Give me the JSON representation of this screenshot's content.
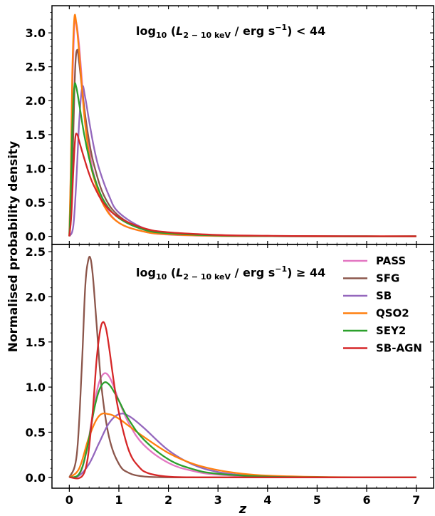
{
  "chart_data": [
    {
      "type": "line",
      "panel": "top",
      "annotation": {
        "text": "log",
        "sub": "10",
        "mid": " (",
        "L": "L",
        "Lsub": "2 − 10 keV",
        "rest": " / erg s",
        "sup": "−1",
        "tail": ") < 44"
      },
      "xlim": [
        -0.35,
        7.35
      ],
      "ylim": [
        -0.12,
        3.4
      ],
      "yticks": [
        0.0,
        0.5,
        1.0,
        1.5,
        2.0,
        2.5,
        3.0
      ],
      "ytick_labels": [
        "0.0",
        "0.5",
        "1.0",
        "1.5",
        "2.0",
        "2.5",
        "3.0"
      ],
      "series": [
        {
          "name": "PASS",
          "color": "#e377c2",
          "x": [
            0,
            0.03,
            0.06,
            0.1,
            0.14,
            0.2,
            0.3,
            0.4,
            0.5,
            0.7,
            1.0,
            1.5,
            2.0,
            3.0,
            4.0,
            5.0,
            6.0,
            7.0
          ],
          "values": [
            0,
            0.9,
            2.1,
            3.05,
            3.15,
            2.8,
            1.9,
            1.3,
            0.9,
            0.48,
            0.2,
            0.07,
            0.025,
            0.005,
            0.001,
            0,
            0,
            0
          ]
        },
        {
          "name": "SFG",
          "color": "#8c564b",
          "x": [
            0,
            0.04,
            0.08,
            0.12,
            0.16,
            0.2,
            0.3,
            0.4,
            0.5,
            0.7,
            1.0,
            1.5,
            2.0,
            3.0,
            4.0,
            5.0,
            6.0,
            7.0
          ],
          "values": [
            0,
            0.4,
            1.5,
            2.5,
            2.75,
            2.55,
            1.9,
            1.4,
            1.05,
            0.6,
            0.3,
            0.1,
            0.04,
            0.01,
            0.003,
            0.001,
            0,
            0
          ]
        },
        {
          "name": "SB",
          "color": "#9467bd",
          "x": [
            0,
            0.08,
            0.14,
            0.2,
            0.26,
            0.32,
            0.4,
            0.5,
            0.6,
            0.8,
            1.0,
            1.5,
            2.0,
            3.0,
            4.0,
            5.0,
            6.0,
            7.0
          ],
          "values": [
            0,
            0.15,
            0.8,
            1.7,
            2.2,
            2.05,
            1.7,
            1.3,
            1.0,
            0.6,
            0.35,
            0.12,
            0.05,
            0.01,
            0.003,
            0.001,
            0,
            0
          ]
        },
        {
          "name": "QSO2",
          "color": "#ff7f0e",
          "x": [
            0,
            0.03,
            0.06,
            0.1,
            0.14,
            0.2,
            0.3,
            0.4,
            0.5,
            0.7,
            1.0,
            1.5,
            2.0,
            3.0,
            4.0,
            5.0,
            6.0,
            7.0
          ],
          "values": [
            0,
            1.0,
            2.4,
            3.2,
            3.15,
            2.7,
            1.8,
            1.2,
            0.85,
            0.45,
            0.2,
            0.07,
            0.03,
            0.006,
            0.002,
            0,
            0,
            0
          ]
        },
        {
          "name": "SEY2",
          "color": "#2ca02c",
          "x": [
            0,
            0.03,
            0.06,
            0.1,
            0.14,
            0.2,
            0.3,
            0.4,
            0.5,
            0.7,
            1.0,
            1.5,
            2.0,
            3.0,
            4.0,
            5.0,
            6.0,
            7.0
          ],
          "values": [
            0,
            0.6,
            1.6,
            2.2,
            2.2,
            1.95,
            1.5,
            1.15,
            0.88,
            0.52,
            0.27,
            0.1,
            0.045,
            0.012,
            0.004,
            0.001,
            0,
            0
          ]
        },
        {
          "name": "SB-AGN",
          "color": "#d62728",
          "x": [
            0,
            0.04,
            0.08,
            0.12,
            0.16,
            0.2,
            0.3,
            0.4,
            0.5,
            0.7,
            1.0,
            1.5,
            2.0,
            3.0,
            4.0,
            5.0,
            6.0,
            7.0
          ],
          "values": [
            0,
            0.3,
            0.95,
            1.45,
            1.5,
            1.4,
            1.15,
            0.92,
            0.74,
            0.48,
            0.28,
            0.12,
            0.06,
            0.02,
            0.008,
            0.003,
            0.001,
            0
          ]
        }
      ]
    },
    {
      "type": "line",
      "panel": "bottom",
      "annotation": {
        "text": "log",
        "sub": "10",
        "mid": " (",
        "L": "L",
        "Lsub": "2 − 10 keV",
        "rest": " / erg s",
        "sup": "−1",
        "tail": ") ≥ 44"
      },
      "xlim": [
        -0.35,
        7.35
      ],
      "ylim": [
        -0.12,
        2.58
      ],
      "yticks": [
        0.0,
        0.5,
        1.0,
        1.5,
        2.0,
        2.5
      ],
      "ytick_labels": [
        "0.0",
        "0.5",
        "1.0",
        "1.5",
        "2.0",
        "2.5"
      ],
      "xticks": [
        0,
        1,
        2,
        3,
        4,
        5,
        6,
        7
      ],
      "xtick_labels": [
        "0",
        "1",
        "2",
        "3",
        "4",
        "5",
        "6",
        "7"
      ],
      "xlabel": "z",
      "series": [
        {
          "name": "PASS",
          "color": "#e377c2",
          "x": [
            0,
            0.2,
            0.35,
            0.5,
            0.6,
            0.7,
            0.8,
            0.9,
            1.0,
            1.2,
            1.5,
            2.0,
            2.5,
            3.0,
            4.0,
            5.0,
            6.0,
            7.0
          ],
          "values": [
            0,
            0.03,
            0.3,
            0.8,
            1.05,
            1.15,
            1.12,
            1.0,
            0.85,
            0.6,
            0.36,
            0.16,
            0.07,
            0.03,
            0.006,
            0.001,
            0,
            0
          ]
        },
        {
          "name": "SFG",
          "color": "#8c564b",
          "x": [
            0,
            0.15,
            0.25,
            0.32,
            0.38,
            0.43,
            0.48,
            0.55,
            0.65,
            0.8,
            1.0,
            1.2,
            1.5,
            2.0,
            3.0,
            7.0
          ],
          "values": [
            0,
            0.25,
            1.2,
            2.1,
            2.4,
            2.42,
            2.2,
            1.7,
            1.0,
            0.45,
            0.15,
            0.05,
            0.01,
            0.001,
            0,
            0
          ]
        },
        {
          "name": "SB",
          "color": "#9467bd",
          "x": [
            0,
            0.2,
            0.4,
            0.6,
            0.8,
            1.0,
            1.2,
            1.5,
            2.0,
            2.5,
            3.0,
            3.5,
            4.0,
            5.0,
            6.0,
            7.0
          ],
          "values": [
            0,
            0.02,
            0.15,
            0.38,
            0.6,
            0.7,
            0.68,
            0.55,
            0.3,
            0.14,
            0.06,
            0.025,
            0.01,
            0.002,
            0,
            0
          ]
        },
        {
          "name": "QSO2",
          "color": "#ff7f0e",
          "x": [
            0,
            0.2,
            0.4,
            0.6,
            0.8,
            1.0,
            1.2,
            1.5,
            2.0,
            2.5,
            3.0,
            3.5,
            4.0,
            5.0,
            6.0,
            7.0
          ],
          "values": [
            0,
            0.1,
            0.45,
            0.68,
            0.7,
            0.65,
            0.57,
            0.45,
            0.27,
            0.15,
            0.08,
            0.04,
            0.02,
            0.005,
            0.001,
            0
          ]
        },
        {
          "name": "SEY2",
          "color": "#2ca02c",
          "x": [
            0,
            0.2,
            0.35,
            0.5,
            0.6,
            0.7,
            0.8,
            0.9,
            1.0,
            1.2,
            1.5,
            2.0,
            2.5,
            3.0,
            4.0,
            5.0,
            6.0,
            7.0
          ],
          "values": [
            0,
            0.04,
            0.3,
            0.75,
            0.96,
            1.05,
            1.03,
            0.95,
            0.85,
            0.64,
            0.42,
            0.2,
            0.09,
            0.04,
            0.008,
            0.002,
            0,
            0
          ]
        },
        {
          "name": "SB-AGN",
          "color": "#d62728",
          "x": [
            0,
            0.3,
            0.45,
            0.55,
            0.62,
            0.68,
            0.74,
            0.8,
            0.9,
            1.0,
            1.2,
            1.4,
            1.6,
            2.0,
            2.5,
            3.0,
            7.0
          ],
          "values": [
            0,
            0.05,
            0.6,
            1.3,
            1.62,
            1.72,
            1.65,
            1.45,
            1.05,
            0.72,
            0.3,
            0.12,
            0.045,
            0.008,
            0.001,
            0,
            0
          ]
        }
      ],
      "legend": {
        "position": "upper-right",
        "entries": [
          "PASS",
          "SFG",
          "SB",
          "QSO2",
          "SEY2",
          "SB-AGN"
        ]
      }
    }
  ],
  "ylabel": "Normalised probability density"
}
